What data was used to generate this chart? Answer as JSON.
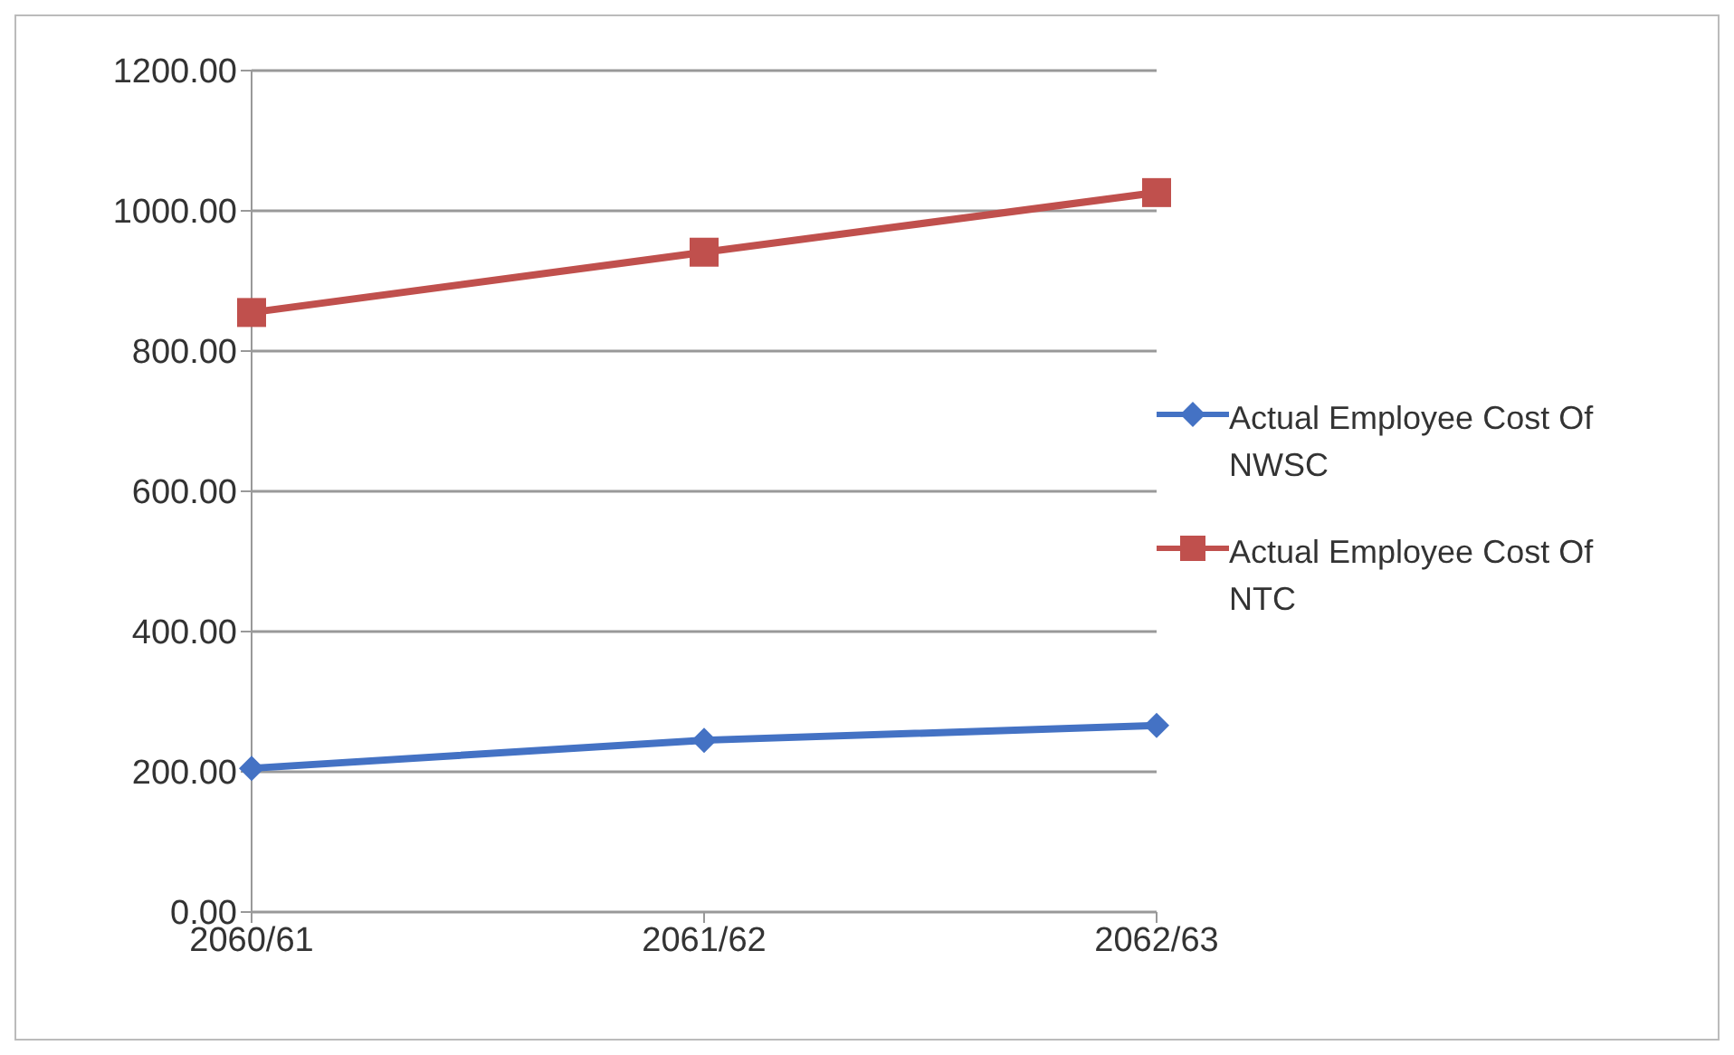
{
  "chart_data": {
    "type": "line",
    "categories": [
      "2060/61",
      "2061/62",
      "2062/63"
    ],
    "series": [
      {
        "name": "Actual Employee Cost Of NWSC",
        "color": "#4472c4",
        "marker": "diamond",
        "values": [
          205,
          245,
          266
        ]
      },
      {
        "name": "Actual Employee Cost Of NTC",
        "color": "#c0504d",
        "marker": "square",
        "values": [
          855,
          941,
          1026
        ]
      }
    ],
    "ylim": [
      0,
      1200
    ],
    "yticks": [
      {
        "value": 0,
        "label": "0.00"
      },
      {
        "value": 200,
        "label": "200.00"
      },
      {
        "value": 400,
        "label": "400.00"
      },
      {
        "value": 600,
        "label": "600.00"
      },
      {
        "value": 800,
        "label": "800.00"
      },
      {
        "value": 1000,
        "label": "1000.00"
      },
      {
        "value": 1200,
        "label": "1200.00"
      }
    ],
    "grid": "y",
    "legend": "right"
  }
}
